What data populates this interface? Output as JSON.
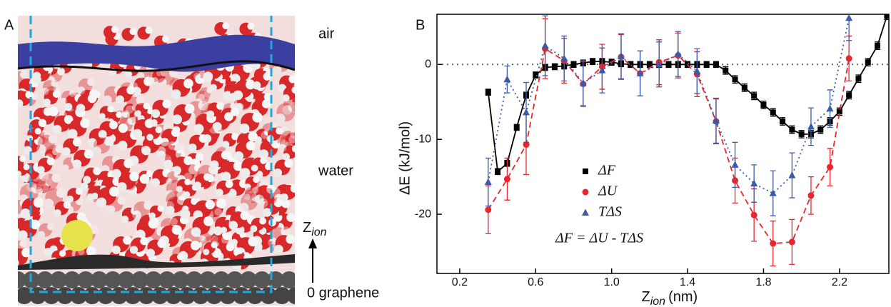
{
  "panel_a": {
    "label": "A",
    "air": "air",
    "water": "water",
    "z_axis": {
      "main": "Z",
      "sub": "ion"
    },
    "graphene": "0 graphene"
  },
  "chart_data": {
    "type": "line",
    "label": "B",
    "xlabel": {
      "main": "Z",
      "sub": "ion",
      "unit": "(nm)"
    },
    "ylabel": "ΔE (kJ/mol)",
    "xlim": [
      0.08,
      2.46
    ],
    "ylim": [
      -27.9,
      6.7
    ],
    "xticks": [
      0.2,
      0.6,
      {
        "value": 1,
        "label": "1.0"
      },
      1.4,
      1.8,
      2.2
    ],
    "yticks": [
      0,
      -10,
      -20
    ],
    "zero_line": true,
    "annotation": "ΔF = ΔU - TΔS",
    "series": [
      {
        "name": "ΔF",
        "color": "#000000",
        "marker": "square",
        "dash": "solid",
        "x": [
          0.35,
          0.4,
          0.45,
          0.5,
          0.55,
          0.6,
          0.65,
          0.7,
          0.75,
          0.8,
          0.85,
          0.9,
          0.95,
          1.0,
          1.05,
          1.1,
          1.15,
          1.2,
          1.25,
          1.3,
          1.35,
          1.4,
          1.45,
          1.5,
          1.55,
          1.6,
          1.65,
          1.7,
          1.75,
          1.8,
          1.85,
          1.9,
          1.95,
          2.0,
          2.05,
          2.1,
          2.15,
          2.2,
          2.25,
          2.3,
          2.35,
          2.4,
          2.45
        ],
        "values": [
          -3.7,
          -14.3,
          -13.2,
          -8.4,
          -4.1,
          -1.4,
          -0.4,
          -0.3,
          -0.2,
          0,
          0.2,
          0.4,
          0.4,
          0.3,
          0.1,
          0,
          0,
          0,
          0,
          0,
          0,
          0,
          0,
          0,
          0,
          -0.8,
          -2,
          -3.1,
          -4.2,
          -5.4,
          -6.4,
          -7.6,
          -8.7,
          -9.3,
          -9.3,
          -8.7,
          -7.6,
          -6.3,
          -4.1,
          -1.9,
          0.3,
          2.5,
          6.5
        ],
        "errors": [
          0.4,
          0.4,
          0.4,
          0.4,
          0.4,
          0.4,
          0.4,
          0.4,
          0.4,
          0.4,
          0.4,
          0.4,
          0.4,
          0.4,
          0.4,
          0.4,
          0.4,
          0.4,
          0.4,
          0.4,
          0.4,
          0.4,
          0.4,
          0.4,
          0.4,
          0.5,
          0.5,
          0.5,
          0.5,
          0.5,
          0.5,
          0.5,
          0.5,
          0.5,
          0.5,
          0.5,
          0.5,
          0.5,
          0.5,
          0.5,
          0.5,
          0.5,
          0.5
        ]
      },
      {
        "name": "ΔU",
        "color": "#e8262d",
        "marker": "circle",
        "dash": "dashed",
        "x": [
          0.35,
          0.45,
          0.55,
          0.65,
          0.75,
          0.85,
          0.95,
          1.05,
          1.15,
          1.25,
          1.35,
          1.45,
          1.55,
          1.65,
          1.75,
          1.85,
          1.95,
          2.05,
          2.15,
          2.25
        ],
        "values": [
          -19.4,
          -15.3,
          -10.7,
          2.1,
          0.5,
          -2.6,
          -0.3,
          1,
          -1.2,
          0.3,
          1.2,
          -1.3,
          -7.6,
          -15.5,
          -20.1,
          -23.9,
          -23.7,
          -17.5,
          -13.7,
          0.8
        ],
        "errors": [
          3.2,
          2.8,
          4,
          4,
          3,
          3,
          3,
          3,
          3,
          3,
          3,
          3,
          3,
          3,
          3.5,
          3,
          3,
          2.5,
          2.5,
          3
        ]
      },
      {
        "name": "TΔS",
        "color": "#3a5ba8",
        "marker": "triangle",
        "dash": "dotted",
        "x": [
          0.35,
          0.45,
          0.55,
          0.65,
          0.75,
          0.85,
          0.95,
          1.05,
          1.15,
          1.25,
          1.35,
          1.45,
          1.55,
          1.65,
          1.75,
          1.85,
          1.95,
          2.05,
          2.15,
          2.25
        ],
        "values": [
          -15.7,
          -2,
          -6.4,
          2.5,
          0.8,
          -2.5,
          -0.8,
          1.1,
          -1.2,
          0,
          1.4,
          -0.9,
          -7.5,
          -13.4,
          -15.9,
          -17.2,
          -14.8,
          -8.3,
          -5.9,
          6.2
        ],
        "errors": [
          3.2,
          1.8,
          4,
          4,
          3,
          3,
          3,
          3,
          3,
          3,
          3,
          3,
          3,
          3,
          2.5,
          3,
          3,
          2.5,
          2.5,
          3
        ]
      }
    ]
  }
}
